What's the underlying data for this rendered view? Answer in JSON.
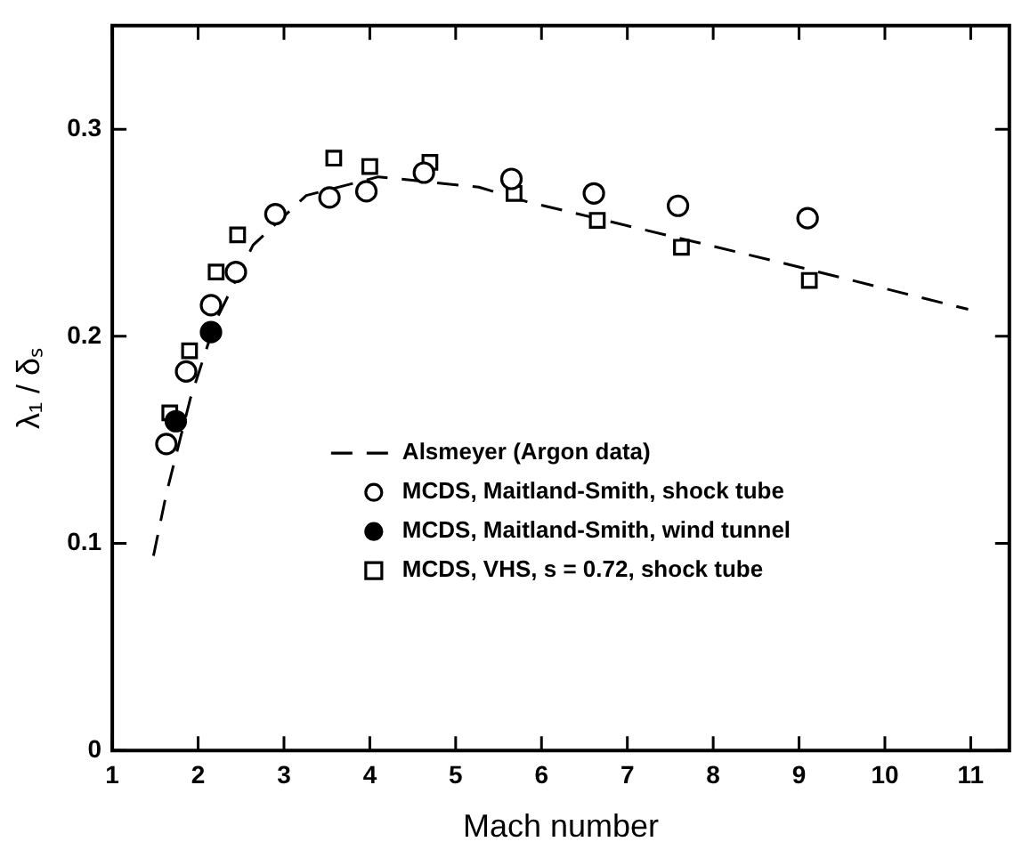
{
  "chart_data": {
    "type": "scatter",
    "xlabel": "Mach number",
    "ylabel": "λ₁ / δₛ",
    "xlim": [
      1,
      11.45
    ],
    "ylim": [
      0,
      0.35
    ],
    "xticks": [
      1,
      2,
      3,
      4,
      5,
      6,
      7,
      8,
      9,
      10,
      11
    ],
    "yticks": [
      0,
      0.1,
      0.2,
      0.3
    ],
    "grid": false,
    "legend": "bottom",
    "series": [
      {
        "name": "Alsmeyer (Argon data)",
        "type": "line",
        "line_style": "dashed",
        "marker": "none",
        "color": "#000000",
        "x": [
          1.48,
          1.63,
          1.91,
          2.2,
          2.64,
          3.26,
          4.1,
          5.27,
          5.83,
          8.75,
          10.97
        ],
        "values": [
          0.094,
          0.124,
          0.17,
          0.207,
          0.244,
          0.268,
          0.277,
          0.272,
          0.265,
          0.236,
          0.213
        ]
      },
      {
        "name": "MCDS, Maitland-Smith, shock tube",
        "type": "scatter",
        "marker": "circle",
        "color": "#000000",
        "x": [
          1.63,
          1.86,
          2.15,
          2.44,
          2.9,
          3.53,
          3.96,
          4.63,
          5.65,
          6.61,
          7.59,
          9.1
        ],
        "values": [
          0.148,
          0.183,
          0.215,
          0.231,
          0.259,
          0.267,
          0.27,
          0.279,
          0.276,
          0.269,
          0.263,
          0.257
        ]
      },
      {
        "name": "MCDS, Maitland-Smith, wind tunnel",
        "type": "scatter",
        "marker": "circle",
        "color": "#000000",
        "x": [
          1.74,
          2.15
        ],
        "values": [
          0.159,
          0.202
        ]
      },
      {
        "name": "MCDS, VHS, s = 0.72, shock tube",
        "type": "scatter",
        "marker": "square",
        "color": "#000000",
        "x": [
          1.67,
          1.9,
          2.21,
          2.46,
          3.58,
          4.0,
          4.7,
          5.68,
          6.65,
          7.63,
          9.12
        ],
        "values": [
          0.163,
          0.193,
          0.231,
          0.249,
          0.286,
          0.282,
          0.284,
          0.269,
          0.256,
          0.243,
          0.227
        ]
      }
    ]
  }
}
